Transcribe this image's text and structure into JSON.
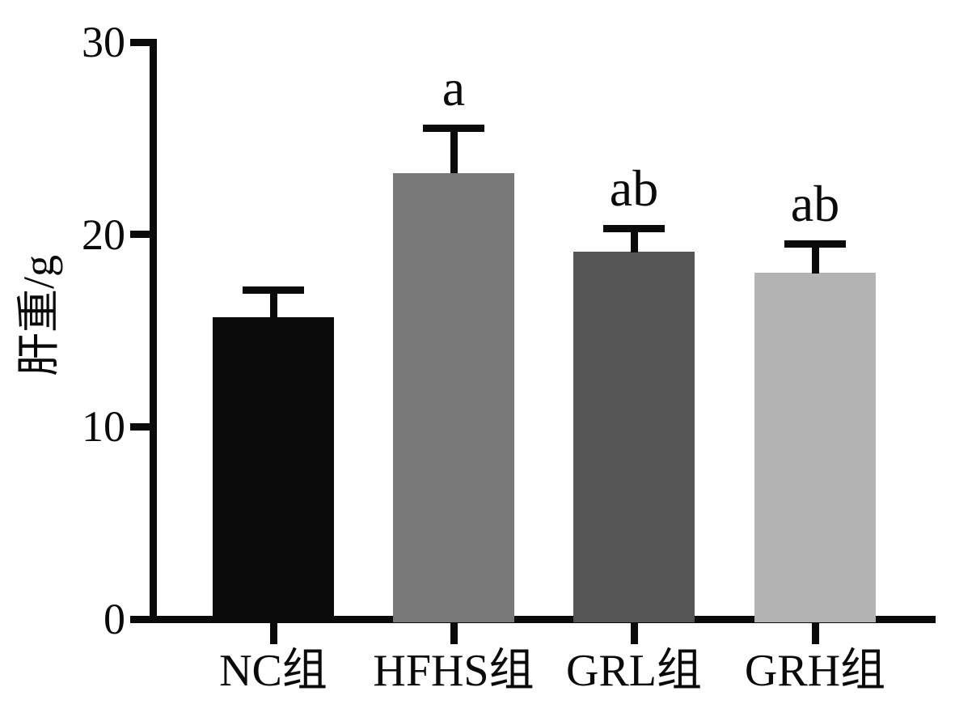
{
  "chart_data": {
    "type": "bar",
    "title": "",
    "xlabel": "",
    "ylabel": "肝重/g",
    "ylim": [
      0,
      30
    ],
    "yticks": [
      0,
      10,
      20,
      30
    ],
    "grid": false,
    "legend": null,
    "categories": [
      "NC组",
      "HFHS组",
      "GRL组",
      "GRH组"
    ],
    "series": [
      {
        "name": "肝重",
        "values": [
          15.7,
          23.2,
          19.1,
          18.0
        ],
        "errors": [
          1.4,
          2.3,
          1.2,
          1.5
        ]
      }
    ],
    "annotations": [
      "",
      "a",
      "ab",
      "ab"
    ],
    "bar_colors": [
      "#0a0a0a",
      "#787878",
      "#555555",
      "#b3b3b3"
    ],
    "axis_color": "#0a0a0a",
    "error_bar_style": "upper-only-with-cap"
  }
}
